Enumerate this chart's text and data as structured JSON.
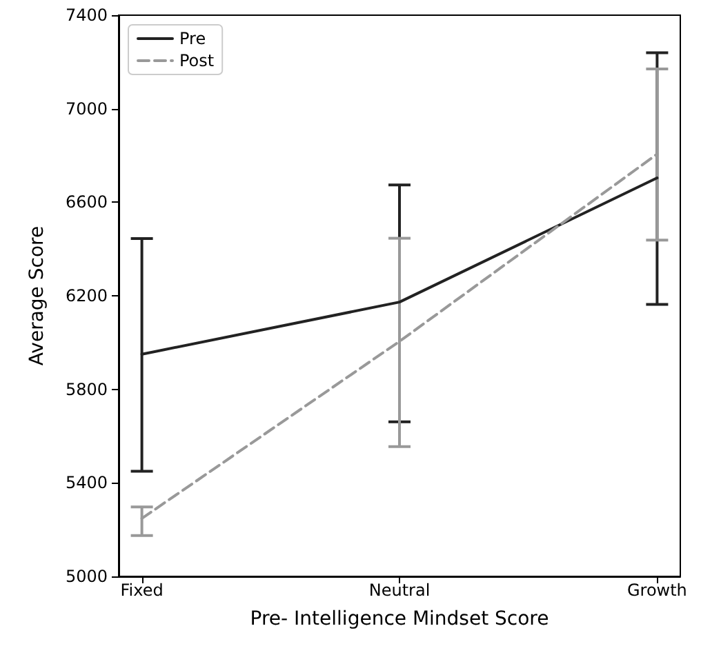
{
  "chart_data": {
    "type": "line",
    "xlabel": "Pre- Intelligence Mindset Score",
    "ylabel": "Average Score",
    "categories": [
      "Fixed",
      "Neutral",
      "Growth"
    ],
    "series": [
      {
        "name": "Pre",
        "color": "#222222",
        "line_style": "solid",
        "values": [
          5950,
          6173,
          6704
        ],
        "errors": [
          [
            5450,
            6445
          ],
          [
            5661,
            6674
          ],
          [
            6163,
            7239
          ]
        ]
      },
      {
        "name": "Post",
        "color": "#999999",
        "line_style": "dashed",
        "values": [
          5248,
          6005,
          6806
        ],
        "errors": [
          [
            5175,
            5297
          ],
          [
            5555,
            6446
          ],
          [
            6438,
            7170
          ]
        ]
      }
    ],
    "ylim": [
      5000,
      7400
    ],
    "yticks": [
      5000,
      5400,
      5800,
      6200,
      6600,
      7000,
      7400
    ],
    "grid": false,
    "legend": "top left",
    "marker": "none"
  }
}
